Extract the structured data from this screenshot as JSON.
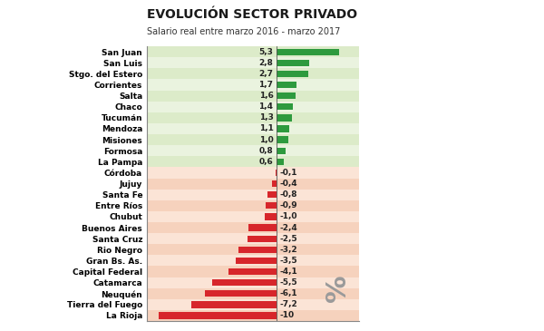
{
  "chart_data": {
    "type": "bar",
    "orientation": "horizontal",
    "title": "EVOLUCIÓN SECTOR PRIVADO",
    "subtitle": "Salario real entre marzo 2016 - marzo 2017",
    "annotations": [
      "%"
    ],
    "categories": [
      "San Juan",
      "San Luis",
      "Stgo. del Estero",
      "Corrientes",
      "Salta",
      "Chaco",
      "Tucumán",
      "Mendoza",
      "Misiones",
      "Formosa",
      "La Pampa",
      "Córdoba",
      "Jujuy",
      "Santa Fe",
      "Entre Ríos",
      "Chubut",
      "Buenos Aires",
      "Santa Cruz",
      "Rio Negro",
      "Gran Bs. As.",
      "Capital Federal",
      "Catamarca",
      "Neuquén",
      "Tierra del Fuego",
      "La Rioja"
    ],
    "values": [
      5.3,
      2.8,
      2.7,
      1.7,
      1.6,
      1.4,
      1.3,
      1.1,
      1.0,
      0.8,
      0.6,
      -0.1,
      -0.4,
      -0.8,
      -0.9,
      -1.0,
      -2.4,
      -2.5,
      -3.2,
      -3.5,
      -4.1,
      -5.5,
      -6.1,
      -7.2,
      -10
    ],
    "value_labels": [
      "5,3",
      "2,8",
      "2,7",
      "1,7",
      "1,6",
      "1,4",
      "1,3",
      "1,1",
      "1,0",
      "0,8",
      "0,6",
      "-0,1",
      "-0,4",
      "-0,8",
      "-0,9",
      "-1,0",
      "-2,4",
      "-2,5",
      "-3,2",
      "-3,5",
      "-4,1",
      "-5,5",
      "-6,1",
      "-7,2",
      "-10"
    ],
    "colors": [
      "#2e9a3e",
      "#2e9a3e",
      "#2e9a3e",
      "#2e9a3e",
      "#2e9a3e",
      "#2e9a3e",
      "#2e9a3e",
      "#2e9a3e",
      "#2e9a3e",
      "#2e9a3e",
      "#2e9a3e",
      "#d7262b",
      "#d7262b",
      "#d7262b",
      "#d7262b",
      "#d7262b",
      "#d7262b",
      "#d7262b",
      "#d7262b",
      "#d7262b",
      "#d7262b",
      "#d7262b",
      "#d7262b",
      "#d7262b",
      "#d7262b"
    ],
    "xlim": [
      -11,
      7
    ],
    "data_labels": true,
    "tick_labels": "y",
    "grid": false
  }
}
